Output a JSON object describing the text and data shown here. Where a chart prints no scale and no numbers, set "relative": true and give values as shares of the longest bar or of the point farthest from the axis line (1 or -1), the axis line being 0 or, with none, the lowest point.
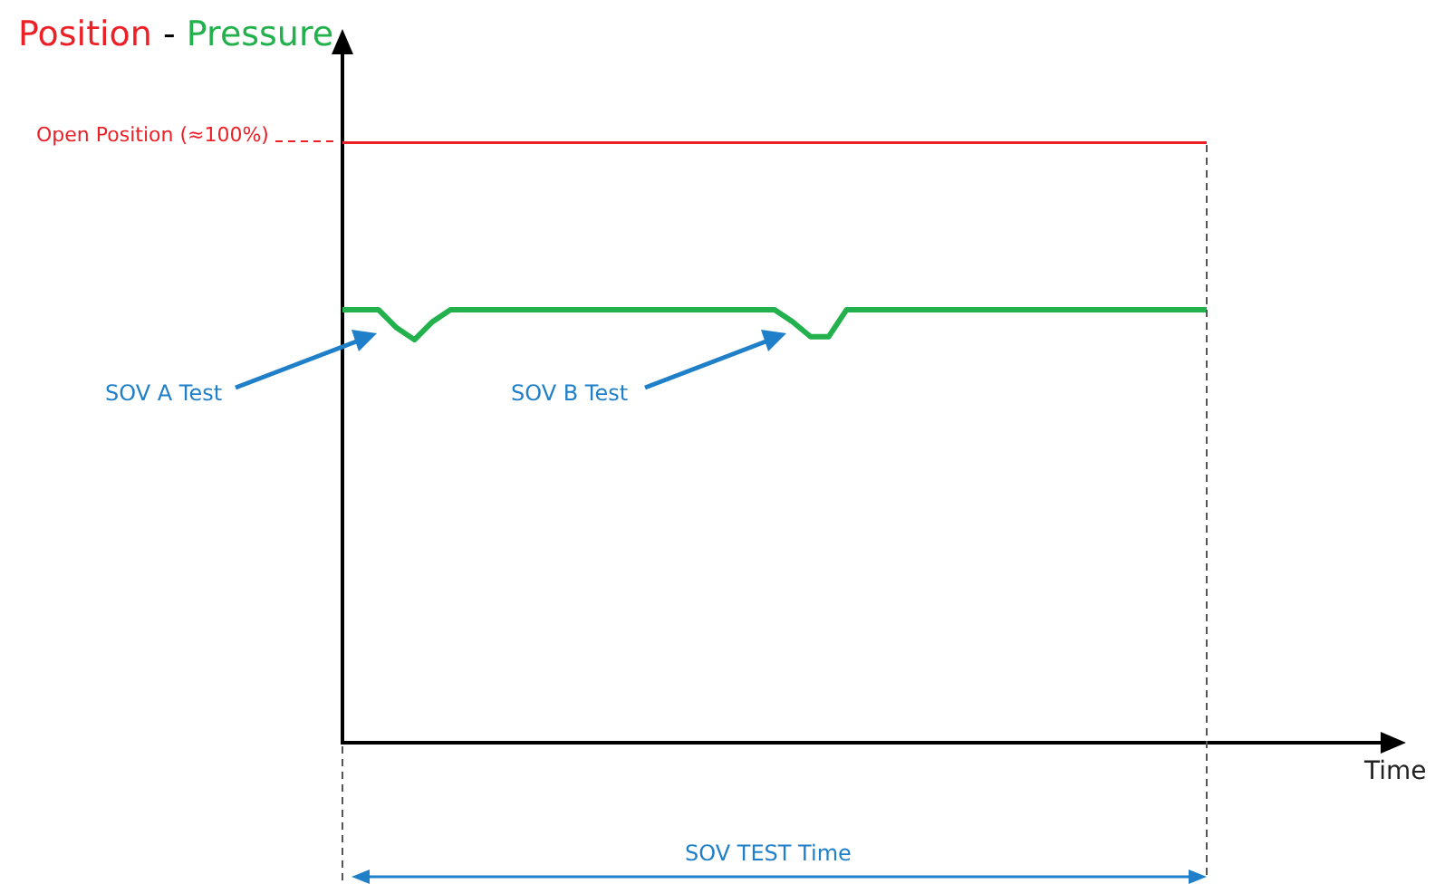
{
  "chart_data": {
    "type": "line",
    "title": "Position - Pressure",
    "relative": true,
    "grid": false,
    "legend": false,
    "marker": "none",
    "line_style": "solid",
    "categories": [
      null,
      null,
      null,
      null,
      null,
      null,
      null,
      null,
      null,
      null,
      null,
      null,
      null,
      null,
      null,
      null,
      null,
      null,
      null,
      null,
      null,
      null,
      null,
      null,
      null,
      null,
      null,
      null,
      null,
      null,
      null,
      null,
      null,
      null,
      null,
      null,
      null,
      null,
      null,
      null,
      null,
      null,
      null,
      null,
      null,
      null,
      null,
      null,
      null
    ],
    "series": [
      {
        "color": "#ec2027",
        "values": [
          1,
          1,
          1,
          1,
          1,
          1,
          1,
          1,
          1,
          1,
          1,
          1,
          1,
          1,
          1,
          1,
          1,
          1,
          1,
          1,
          1,
          1,
          1,
          1,
          1,
          1,
          1,
          1,
          1,
          1,
          1,
          1,
          1,
          1,
          1,
          1,
          1,
          1,
          1,
          1,
          1,
          1,
          1,
          1,
          1,
          1,
          1,
          1,
          1
        ]
      },
      {
        "color": "#22b14c",
        "values": [
          0.72,
          0.72,
          0.72,
          0.69,
          0.67,
          0.7,
          0.72,
          0.72,
          0.72,
          0.72,
          0.72,
          0.72,
          0.72,
          0.72,
          0.72,
          0.72,
          0.72,
          0.72,
          0.72,
          0.72,
          0.72,
          0.72,
          0.72,
          0.72,
          0.72,
          0.7,
          0.675,
          0.675,
          0.72,
          0.72,
          0.72,
          0.72,
          0.72,
          0.72,
          0.72,
          0.72,
          0.72,
          0.72,
          0.72,
          0.72,
          0.72,
          0.72,
          0.72,
          0.72,
          0.72,
          0.72,
          0.72,
          0.72,
          0.72
        ]
      }
    ],
    "annotations": [
      "Open Position (≈100%)",
      "SOV A Test",
      "SOV B Test",
      "SOV TEST Time",
      "Time"
    ]
  }
}
